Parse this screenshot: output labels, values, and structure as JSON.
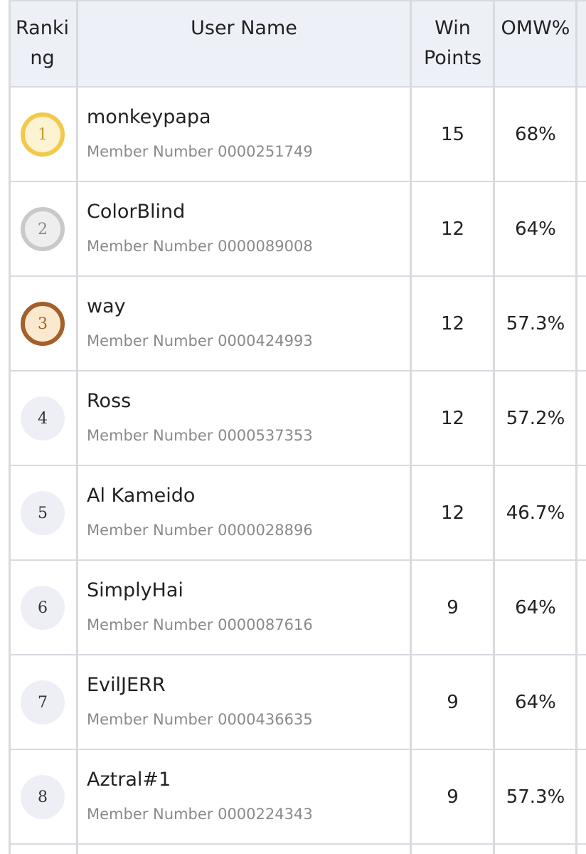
{
  "header": {
    "ranking_line1": "Ranki",
    "ranking_line2": "ng",
    "user_name": "User Name",
    "win_line1": "Win",
    "win_line2": "Points",
    "omw": "OMW%"
  },
  "rows": [
    {
      "rank": "1",
      "medal": "gold",
      "name": "monkeypapa",
      "member": "Member Number 0000251749",
      "win_points": "15",
      "omw": "68%"
    },
    {
      "rank": "2",
      "medal": "silver",
      "name": "ColorBlind",
      "member": "Member Number 0000089008",
      "win_points": "12",
      "omw": "64%"
    },
    {
      "rank": "3",
      "medal": "bronze",
      "name": "way",
      "member": "Member Number 0000424993",
      "win_points": "12",
      "omw": "57.3%"
    },
    {
      "rank": "4",
      "medal": "none",
      "name": "Ross",
      "member": "Member Number 0000537353",
      "win_points": "12",
      "omw": "57.2%"
    },
    {
      "rank": "5",
      "medal": "none",
      "name": "Al Kameido",
      "member": "Member Number 0000028896",
      "win_points": "12",
      "omw": "46.7%"
    },
    {
      "rank": "6",
      "medal": "none",
      "name": "SimplyHai",
      "member": "Member Number 0000087616",
      "win_points": "9",
      "omw": "64%"
    },
    {
      "rank": "7",
      "medal": "none",
      "name": "EvilJERR",
      "member": "Member Number 0000436635",
      "win_points": "9",
      "omw": "64%"
    },
    {
      "rank": "8",
      "medal": "none",
      "name": "Aztral#1",
      "member": "Member Number 0000224343",
      "win_points": "9",
      "omw": "57.3%"
    }
  ],
  "colors": {
    "header_bg": "#eef0f8",
    "grid": "#d9d9e0",
    "gold": "#f2c94c",
    "silver": "#c9c9c9",
    "bronze": "#a4602a",
    "muted_text": "#8a8a8a"
  }
}
